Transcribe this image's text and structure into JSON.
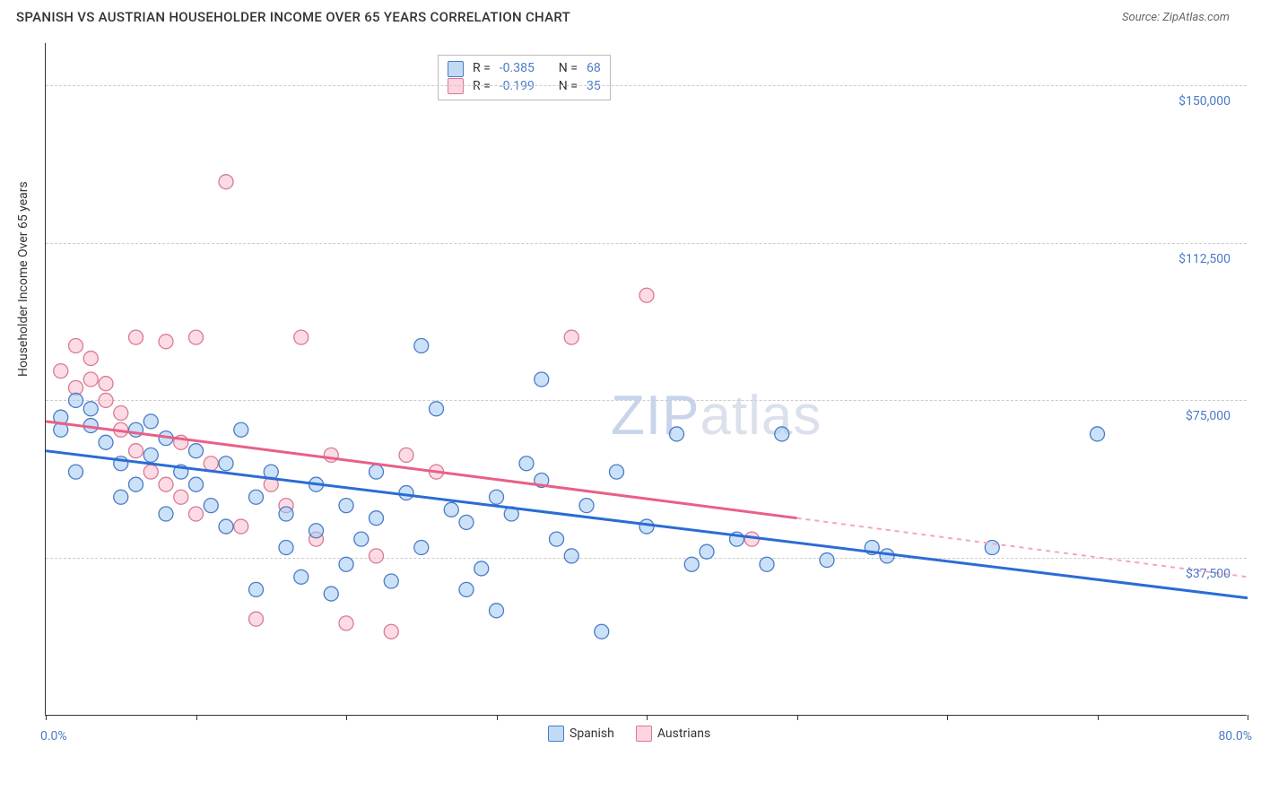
{
  "title": "SPANISH VS AUSTRIAN HOUSEHOLDER INCOME OVER 65 YEARS CORRELATION CHART",
  "source": "Source: ZipAtlas.com",
  "ylabel": "Householder Income Over 65 years",
  "watermark_zip": "ZIP",
  "watermark_atlas": "atlas",
  "chart": {
    "type": "scatter",
    "xlim": [
      0,
      80
    ],
    "ylim": [
      0,
      160000
    ],
    "y_ticks": [
      37500,
      75000,
      112500,
      150000
    ],
    "y_tick_labels": [
      "$37,500",
      "$75,000",
      "$112,500",
      "$150,000"
    ],
    "x_tick_positions": [
      0,
      10,
      20,
      30,
      40,
      50,
      60,
      70,
      80
    ],
    "x_min_label": "0.0%",
    "x_max_label": "80.0%",
    "grid_color": "#cccccc",
    "axis_color": "#333333",
    "tick_label_color": "#4a7bc8",
    "background_color": "#ffffff",
    "series": [
      {
        "name": "Spanish",
        "marker_fill": "rgba(160,200,240,0.55)",
        "marker_stroke": "#4a7bc8",
        "marker_radius": 8,
        "trend_color": "#2b6cd4",
        "trend_dash_color": "#2b6cd4",
        "trend_start": [
          0,
          63000
        ],
        "trend_solid_end": [
          80,
          28000
        ],
        "trend_dash_end": [
          80,
          28000
        ],
        "R": "-0.385",
        "N": "68",
        "points": [
          [
            1,
            71000
          ],
          [
            1,
            68000
          ],
          [
            2,
            75000
          ],
          [
            2,
            58000
          ],
          [
            3,
            69000
          ],
          [
            3,
            73000
          ],
          [
            4,
            65000
          ],
          [
            5,
            52000
          ],
          [
            5,
            60000
          ],
          [
            6,
            68000
          ],
          [
            6,
            55000
          ],
          [
            7,
            62000
          ],
          [
            7,
            70000
          ],
          [
            8,
            66000
          ],
          [
            8,
            48000
          ],
          [
            9,
            58000
          ],
          [
            10,
            63000
          ],
          [
            10,
            55000
          ],
          [
            11,
            50000
          ],
          [
            12,
            60000
          ],
          [
            12,
            45000
          ],
          [
            13,
            68000
          ],
          [
            14,
            52000
          ],
          [
            14,
            30000
          ],
          [
            15,
            58000
          ],
          [
            16,
            48000
          ],
          [
            16,
            40000
          ],
          [
            17,
            33000
          ],
          [
            18,
            55000
          ],
          [
            18,
            44000
          ],
          [
            19,
            29000
          ],
          [
            20,
            50000
          ],
          [
            20,
            36000
          ],
          [
            21,
            42000
          ],
          [
            22,
            58000
          ],
          [
            22,
            47000
          ],
          [
            23,
            32000
          ],
          [
            24,
            53000
          ],
          [
            25,
            40000
          ],
          [
            25,
            88000
          ],
          [
            26,
            73000
          ],
          [
            27,
            49000
          ],
          [
            28,
            46000
          ],
          [
            28,
            30000
          ],
          [
            29,
            35000
          ],
          [
            30,
            52000
          ],
          [
            30,
            25000
          ],
          [
            31,
            48000
          ],
          [
            32,
            60000
          ],
          [
            33,
            56000
          ],
          [
            33,
            80000
          ],
          [
            34,
            42000
          ],
          [
            35,
            38000
          ],
          [
            36,
            50000
          ],
          [
            37,
            20000
          ],
          [
            38,
            58000
          ],
          [
            40,
            45000
          ],
          [
            42,
            67000
          ],
          [
            43,
            36000
          ],
          [
            44,
            39000
          ],
          [
            46,
            42000
          ],
          [
            48,
            36000
          ],
          [
            49,
            67000
          ],
          [
            52,
            37000
          ],
          [
            55,
            40000
          ],
          [
            56,
            38000
          ],
          [
            63,
            40000
          ],
          [
            70,
            67000
          ]
        ]
      },
      {
        "name": "Austrians",
        "marker_fill": "rgba(250,190,205,0.55)",
        "marker_stroke": "#d87a94",
        "marker_radius": 8,
        "trend_color": "#e95f86",
        "trend_dash_color": "#f5a6bb",
        "trend_start": [
          0,
          70000
        ],
        "trend_solid_end": [
          50,
          47000
        ],
        "trend_dash_end": [
          80,
          33000
        ],
        "R": "-0.199",
        "N": "35",
        "points": [
          [
            1,
            82000
          ],
          [
            2,
            88000
          ],
          [
            2,
            78000
          ],
          [
            3,
            80000
          ],
          [
            3,
            85000
          ],
          [
            4,
            79000
          ],
          [
            4,
            75000
          ],
          [
            5,
            72000
          ],
          [
            5,
            68000
          ],
          [
            6,
            90000
          ],
          [
            6,
            63000
          ],
          [
            7,
            58000
          ],
          [
            8,
            89000
          ],
          [
            8,
            55000
          ],
          [
            9,
            65000
          ],
          [
            9,
            52000
          ],
          [
            10,
            90000
          ],
          [
            10,
            48000
          ],
          [
            11,
            60000
          ],
          [
            12,
            127000
          ],
          [
            13,
            45000
          ],
          [
            14,
            23000
          ],
          [
            15,
            55000
          ],
          [
            16,
            50000
          ],
          [
            17,
            90000
          ],
          [
            18,
            42000
          ],
          [
            19,
            62000
          ],
          [
            20,
            22000
          ],
          [
            22,
            38000
          ],
          [
            23,
            20000
          ],
          [
            24,
            62000
          ],
          [
            26,
            58000
          ],
          [
            35,
            90000
          ],
          [
            40,
            100000
          ],
          [
            47,
            42000
          ]
        ]
      }
    ]
  },
  "legend": {
    "series1_label": "Spanish",
    "series2_label": "Austrians",
    "swatch1_fill": "rgba(160,200,240,0.65)",
    "swatch1_stroke": "#4a7bc8",
    "swatch2_fill": "rgba(250,190,205,0.65)",
    "swatch2_stroke": "#d87a94"
  },
  "stats_labels": {
    "R": "R =",
    "N": "N ="
  }
}
